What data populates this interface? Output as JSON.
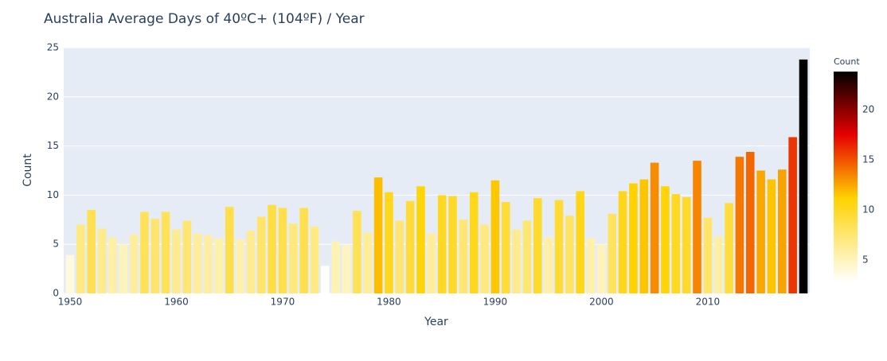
{
  "chart_data": {
    "type": "bar",
    "title": "Australia Average Days of 40ºC+ (104ºF) / Year",
    "x_label": "Year",
    "y_label": "Count",
    "x": [
      1950,
      1951,
      1952,
      1953,
      1954,
      1955,
      1956,
      1957,
      1958,
      1959,
      1960,
      1961,
      1962,
      1963,
      1964,
      1965,
      1966,
      1967,
      1968,
      1969,
      1970,
      1971,
      1972,
      1973,
      1974,
      1975,
      1976,
      1977,
      1978,
      1979,
      1980,
      1981,
      1982,
      1983,
      1984,
      1985,
      1986,
      1987,
      1988,
      1989,
      1990,
      1991,
      1992,
      1993,
      1994,
      1995,
      1996,
      1997,
      1998,
      1999,
      2000,
      2001,
      2002,
      2003,
      2004,
      2005,
      2006,
      2007,
      2008,
      2009,
      2010,
      2011,
      2012,
      2013,
      2014,
      2015,
      2016,
      2017,
      2018,
      2019
    ],
    "values": [
      3.9,
      7.0,
      8.5,
      6.6,
      5.7,
      5.0,
      6.0,
      8.3,
      7.6,
      8.3,
      6.5,
      7.4,
      6.1,
      5.9,
      5.6,
      8.8,
      5.5,
      6.4,
      7.8,
      9.0,
      8.7,
      7.1,
      8.7,
      6.8,
      2.8,
      5.3,
      4.9,
      8.4,
      6.2,
      11.8,
      10.3,
      7.4,
      9.4,
      10.9,
      6.1,
      10.0,
      9.9,
      7.5,
      10.3,
      7.0,
      11.5,
      9.3,
      6.5,
      7.4,
      9.7,
      5.7,
      9.5,
      7.9,
      10.4,
      5.6,
      5.0,
      8.1,
      10.4,
      11.2,
      11.6,
      13.3,
      10.9,
      10.1,
      9.8,
      13.5,
      7.7,
      5.8,
      9.2,
      13.9,
      14.4,
      12.5,
      11.6,
      12.6,
      15.9,
      23.8
    ],
    "xlim": [
      1949.4,
      2019.6
    ],
    "xticks": [
      1950,
      1960,
      1970,
      1980,
      1990,
      2000,
      2010
    ],
    "ylim": [
      0,
      25
    ],
    "yticks": [
      0,
      5,
      10,
      15,
      20,
      25
    ],
    "grid": true,
    "colorscale": [
      [
        0,
        "#ffffff"
      ],
      [
        0.4,
        "#ffd200"
      ],
      [
        0.7,
        "#e60000"
      ],
      [
        1,
        "#000000"
      ]
    ],
    "colorbar": {
      "title": "Count",
      "ticks": [
        5,
        10,
        15,
        20
      ]
    }
  }
}
